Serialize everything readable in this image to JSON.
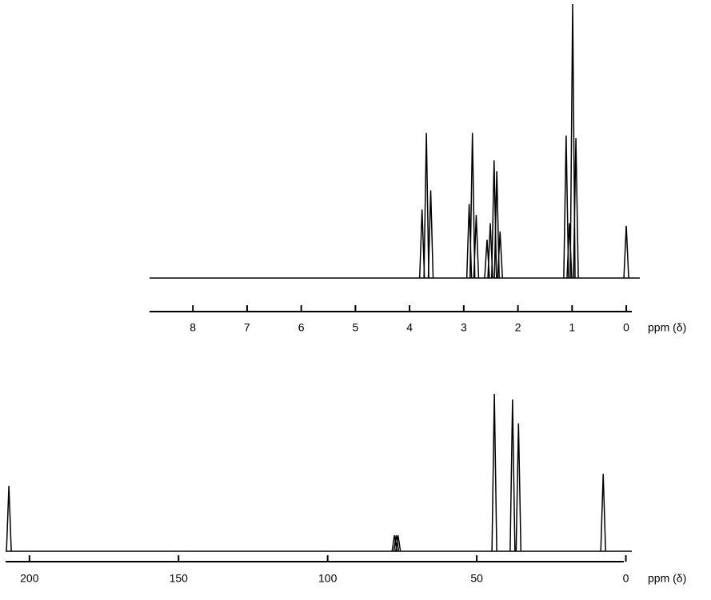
{
  "chart_data": [
    {
      "type": "spectrum",
      "xlabel": "ppm (δ)",
      "xlim": [
        8.8,
        -0.25
      ],
      "xticks": [
        8,
        7,
        6,
        5,
        4,
        3,
        2,
        1,
        0
      ],
      "color": "#000000",
      "x": [
        3.77,
        3.69,
        3.61,
        2.9,
        2.84,
        2.77,
        2.57,
        2.51,
        2.44,
        2.39,
        2.33,
        1.11,
        1.05,
        0.99,
        0.93,
        0
      ],
      "values": [
        25,
        53,
        32,
        27,
        53,
        23,
        14,
        20,
        43,
        39,
        17,
        52,
        20,
        100,
        51,
        19
      ]
    },
    {
      "type": "spectrum",
      "xlabel": "ppm (δ)",
      "xlim": [
        208,
        -2
      ],
      "xticks": [
        200,
        150,
        100,
        50,
        0
      ],
      "color": "#000000",
      "x": [
        206.9,
        77.6,
        77.0,
        76.4,
        44.1,
        38.0,
        36.0,
        7.6
      ],
      "values": [
        82,
        20,
        20,
        20,
        197,
        190,
        160,
        97
      ]
    }
  ]
}
